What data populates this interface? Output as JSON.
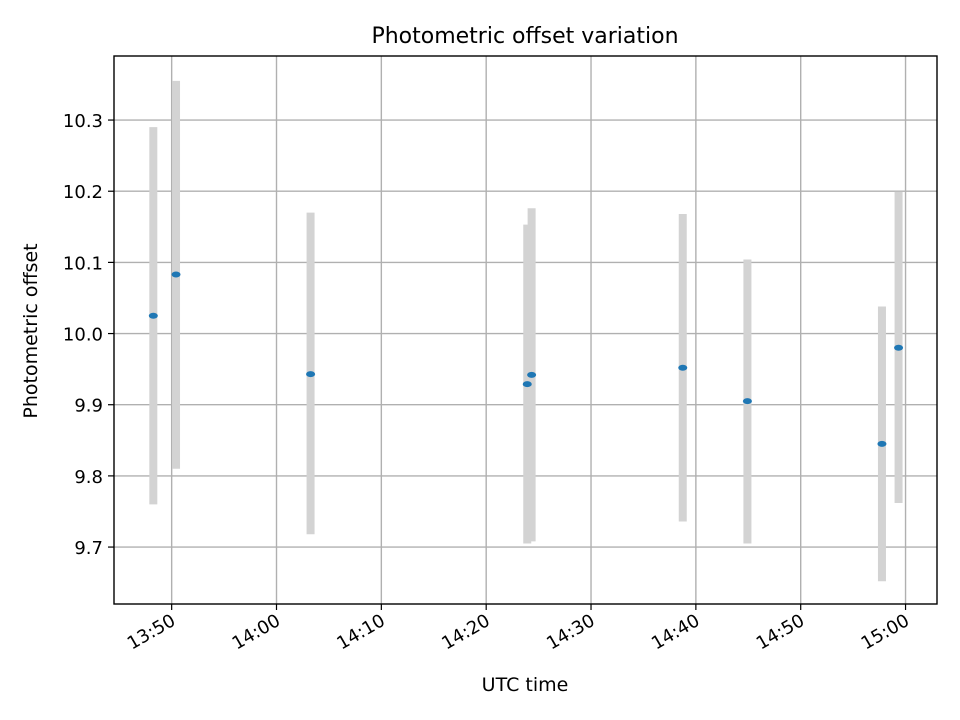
{
  "chart_data": {
    "type": "scatter",
    "title": "Photometric offset variation",
    "xlabel": "UTC time",
    "ylabel": "Photometric offset",
    "xlim": [
      "13:44:30",
      "15:03:00"
    ],
    "ylim": [
      9.62,
      10.39
    ],
    "x_ticks": [
      "13:50",
      "14:00",
      "14:10",
      "14:20",
      "14:30",
      "14:40",
      "14:50",
      "15:00"
    ],
    "y_ticks": [
      "9.7",
      "9.8",
      "9.9",
      "10.0",
      "10.1",
      "10.2",
      "10.3"
    ],
    "grid": true,
    "points": [
      {
        "time": "13:48:15",
        "value": 10.025,
        "err_low": 9.76,
        "err_high": 10.29
      },
      {
        "time": "13:50:25",
        "value": 10.083,
        "err_low": 9.81,
        "err_high": 10.355
      },
      {
        "time": "14:03:15",
        "value": 9.943,
        "err_low": 9.718,
        "err_high": 10.17
      },
      {
        "time": "14:23:55",
        "value": 9.929,
        "err_low": 9.705,
        "err_high": 10.153
      },
      {
        "time": "14:24:20",
        "value": 9.942,
        "err_low": 9.708,
        "err_high": 10.176
      },
      {
        "time": "14:38:45",
        "value": 9.952,
        "err_low": 9.736,
        "err_high": 10.168
      },
      {
        "time": "14:44:55",
        "value": 9.905,
        "err_low": 9.705,
        "err_high": 10.104
      },
      {
        "time": "14:57:45",
        "value": 9.845,
        "err_low": 9.652,
        "err_high": 10.038
      },
      {
        "time": "14:59:20",
        "value": 9.98,
        "err_low": 9.762,
        "err_high": 10.199
      }
    ],
    "colors": {
      "marker": "#1f77b4",
      "errorbar": "#d3d3d3",
      "grid": "#b0b0b0"
    }
  }
}
